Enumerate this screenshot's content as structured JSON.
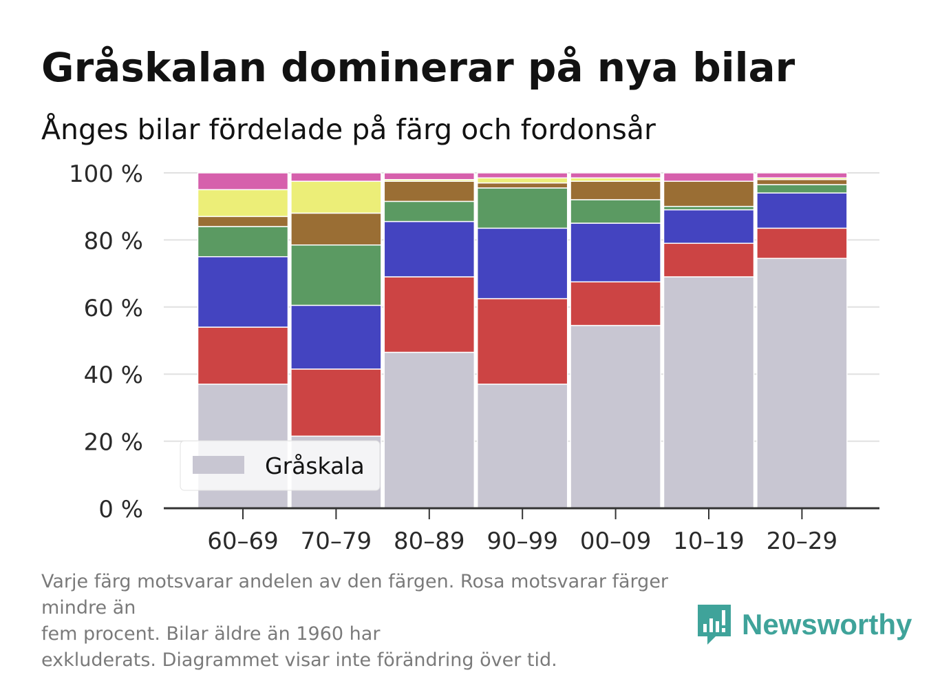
{
  "title": "Gråskalan dominerar på nya bilar",
  "subtitle": "Ånges bilar fördelade på färg och fordonsår",
  "footnote": {
    "line1": "Varje färg motsvarar andelen av den färgen. Rosa motsvarar färger mindre än",
    "line2": "fem procent. Bilar äldre än 1960 har",
    "line3": "exkluderats. Diagrammet visar inte förändring över tid."
  },
  "brand": {
    "name": "Newsworthy",
    "icon": "newsworthy-logo-icon",
    "color": "#3fa39a"
  },
  "chart_data": {
    "type": "bar",
    "stacked": true,
    "categories": [
      "60–69",
      "70–79",
      "80–89",
      "90–99",
      "00–09",
      "10–19",
      "20–29"
    ],
    "ylim": [
      0,
      100
    ],
    "yticks": [
      0,
      20,
      40,
      60,
      80,
      100
    ],
    "ytick_labels": [
      "0 %",
      "20 %",
      "40 %",
      "60 %",
      "80 %",
      "100 %"
    ],
    "grid": true,
    "legend": {
      "placement": "bottom-left",
      "entries": [
        "Gråskala"
      ]
    },
    "series": [
      {
        "name": "Gråskala",
        "color": "#c8c6d2",
        "values": [
          37,
          21.5,
          46.5,
          37,
          54.5,
          69,
          74.5
        ]
      },
      {
        "color": "#cc4444",
        "values": [
          17,
          20,
          22.5,
          25.5,
          13,
          10,
          9
        ]
      },
      {
        "color": "#4444c0",
        "values": [
          21,
          19,
          16.5,
          21,
          17.5,
          10,
          10.5
        ]
      },
      {
        "color": "#5b9a62",
        "values": [
          9,
          18,
          6,
          12,
          7,
          1,
          2.5
        ]
      },
      {
        "color": "#9a6e34",
        "values": [
          3,
          9.5,
          6,
          1.5,
          5.5,
          7.5,
          1.5
        ]
      },
      {
        "color": "#ecee78",
        "values": [
          8,
          9.5,
          0.5,
          1.5,
          1,
          0,
          0.5
        ]
      },
      {
        "color": "#d660ac",
        "values": [
          5,
          2.5,
          2,
          1.5,
          1.5,
          2.5,
          1.5
        ]
      }
    ]
  }
}
